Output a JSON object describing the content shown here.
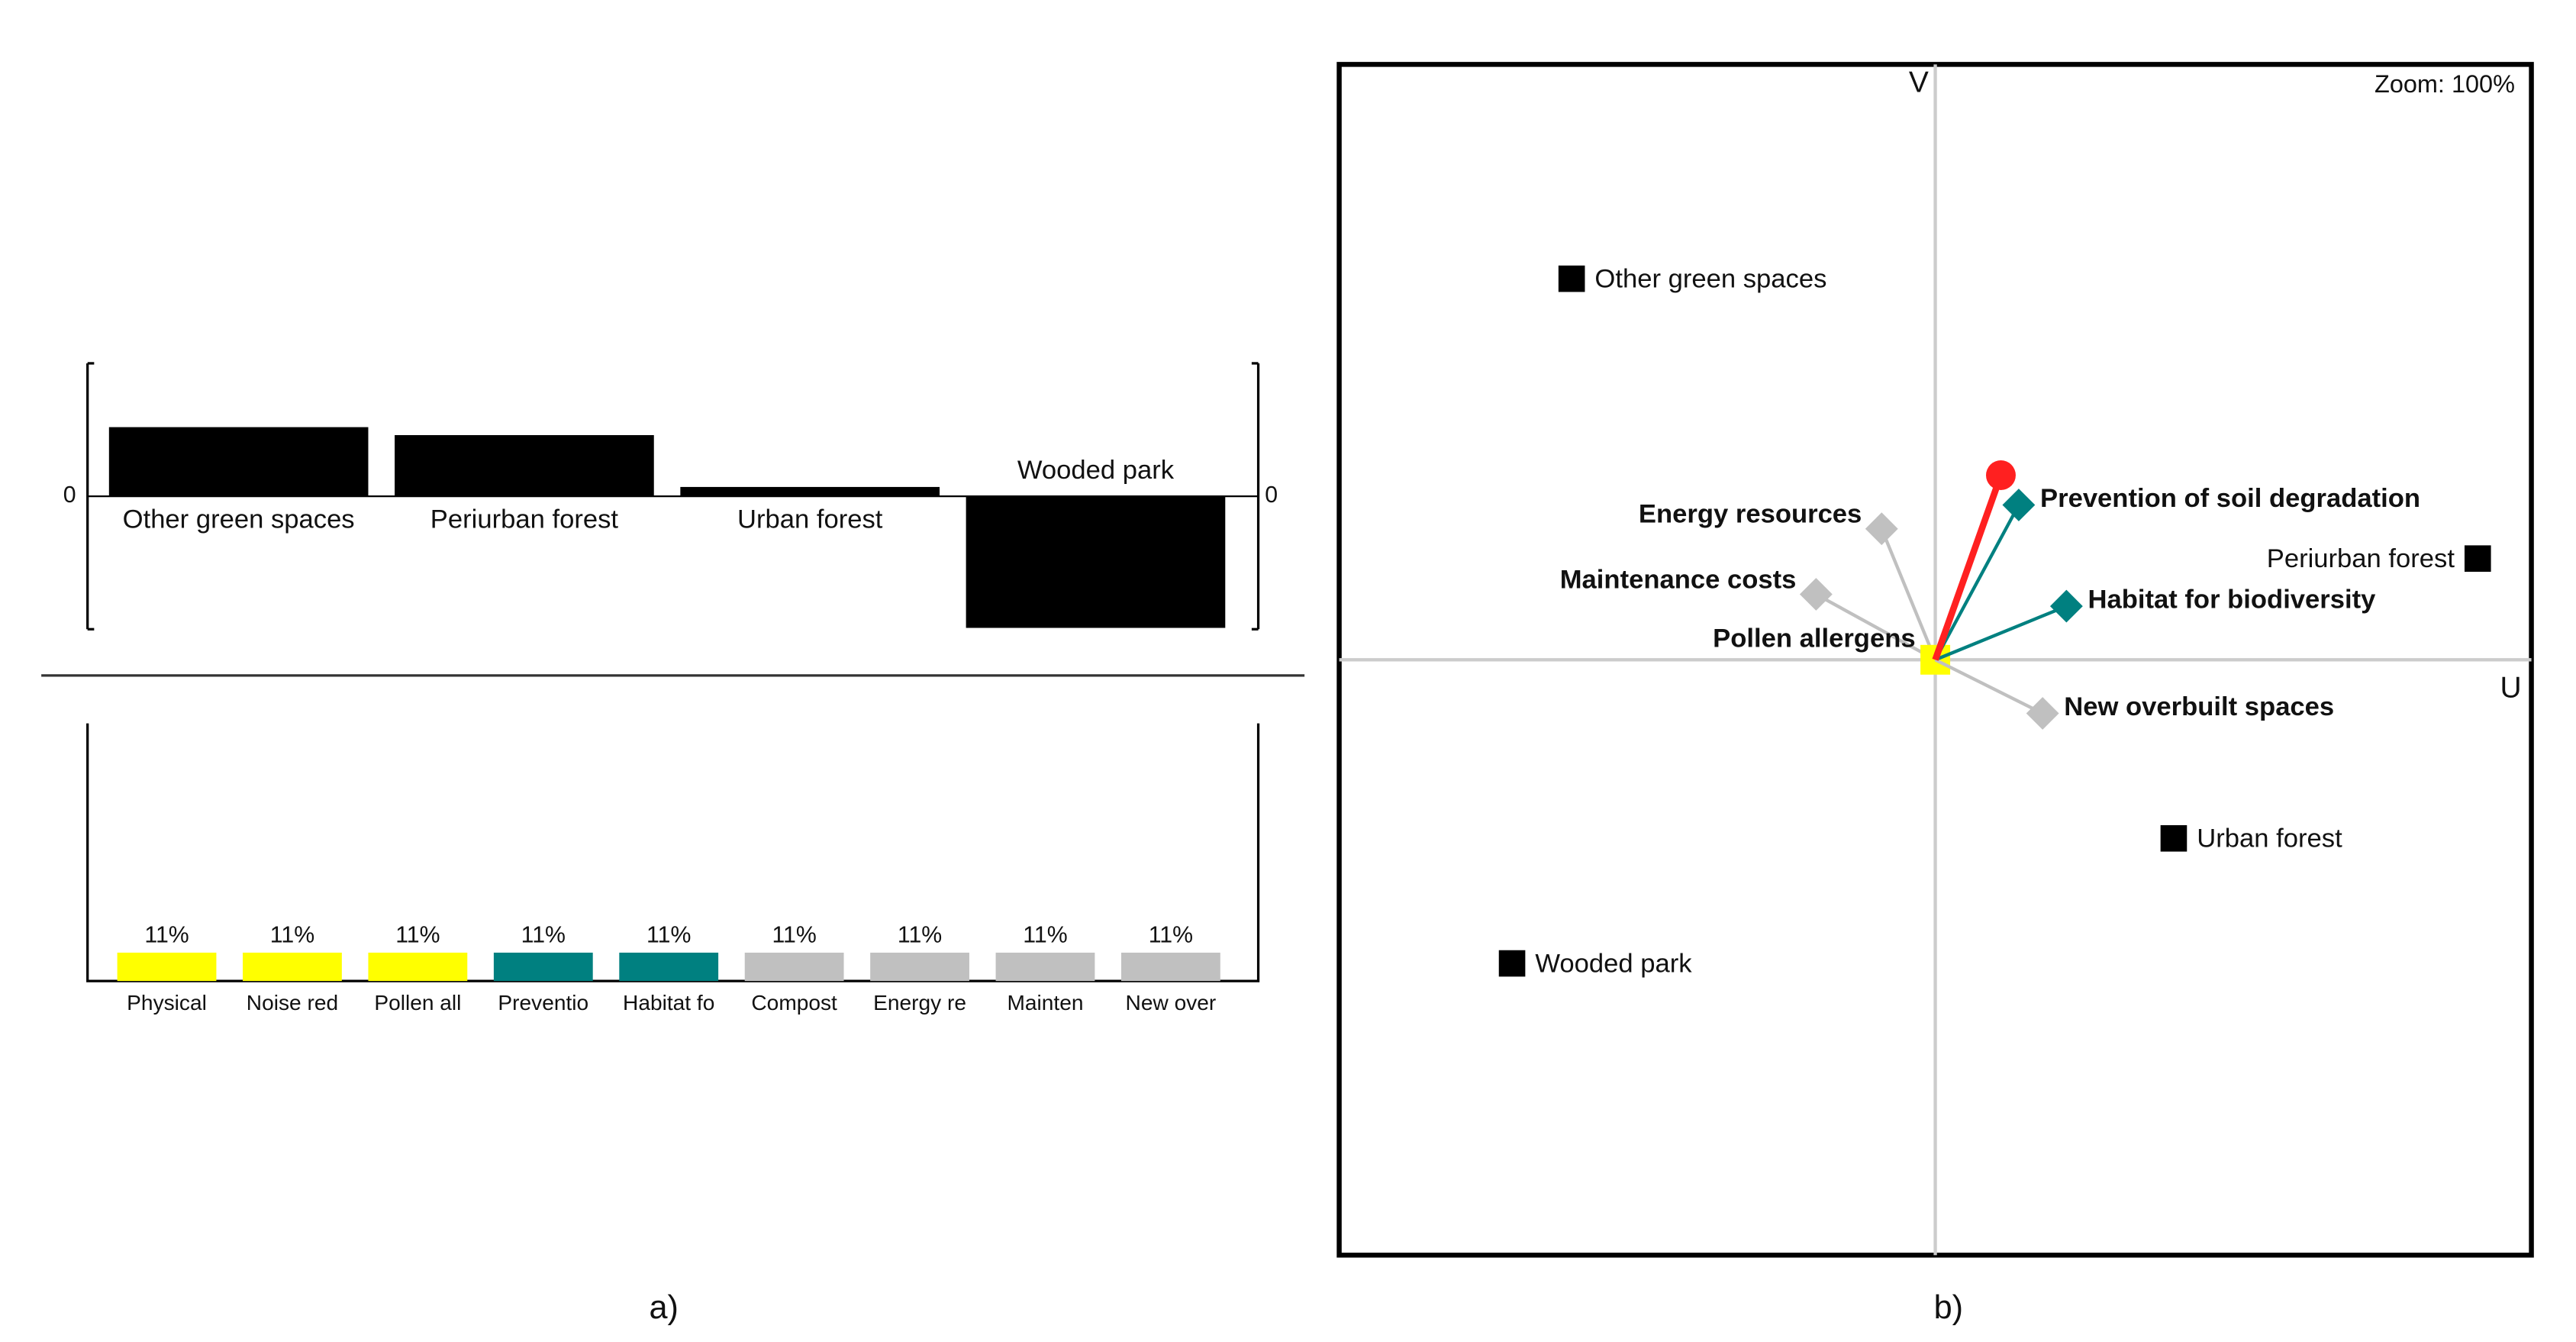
{
  "chart_data": [
    {
      "type": "bar",
      "categories": [
        "Other green spaces",
        "Periurban forest",
        "Urban forest",
        "Wooded park"
      ],
      "values": [
        0.52,
        0.46,
        0.07,
        -0.99
      ],
      "color": "#000000",
      "ylim": [
        -1,
        1
      ],
      "yticks": [
        0
      ]
    },
    {
      "type": "bar",
      "categories": [
        "Physical",
        "Noise red",
        "Pollen all",
        "Preventio",
        "Habitat fo",
        "Compost",
        "Energy re",
        "Mainten",
        "New over"
      ],
      "values": [
        11,
        11,
        11,
        11,
        11,
        11,
        11,
        11,
        11
      ],
      "value_labels": [
        "11%",
        "11%",
        "11%",
        "11%",
        "11%",
        "11%",
        "11%",
        "11%",
        "11%"
      ],
      "colors": [
        "#ffff00",
        "#ffff00",
        "#ffff00",
        "#008080",
        "#008080",
        "#c0c0c0",
        "#c0c0c0",
        "#c0c0c0",
        "#c0c0c0"
      ],
      "ylim": [
        0,
        100
      ]
    },
    {
      "type": "scatter",
      "x_label": "U",
      "y_label": "V",
      "zoom_label": "Zoom: 100%",
      "xlim": [
        -1,
        1
      ],
      "ylim": [
        -1,
        1
      ],
      "alternatives": {
        "labels": [
          "Other green spaces",
          "Periurban forest",
          "Urban forest",
          "Wooded park"
        ],
        "x": [
          -0.61,
          0.91,
          0.4,
          -0.71
        ],
        "y": [
          0.64,
          0.17,
          -0.3,
          -0.51
        ],
        "color": "#000000"
      },
      "criteria": {
        "labels": [
          "Energy resources",
          "Maintenance costs",
          "Pollen allergens",
          "Prevention of soil degradation",
          "Habitat for biodiversity",
          "New overbuilt spaces"
        ],
        "x": [
          -0.09,
          -0.2,
          0,
          0.14,
          0.22,
          0.18
        ],
        "y": [
          0.22,
          0.11,
          0,
          0.26,
          0.09,
          -0.09
        ],
        "colors": [
          "#c0c0c0",
          "#c0c0c0",
          "#ffff00",
          "#008080",
          "#008080",
          "#c0c0c0"
        ]
      },
      "decision_stick": {
        "x": 0.11,
        "y": 0.31,
        "color": "#ff2020"
      }
    }
  ],
  "captions": [
    "a)",
    "b)"
  ]
}
